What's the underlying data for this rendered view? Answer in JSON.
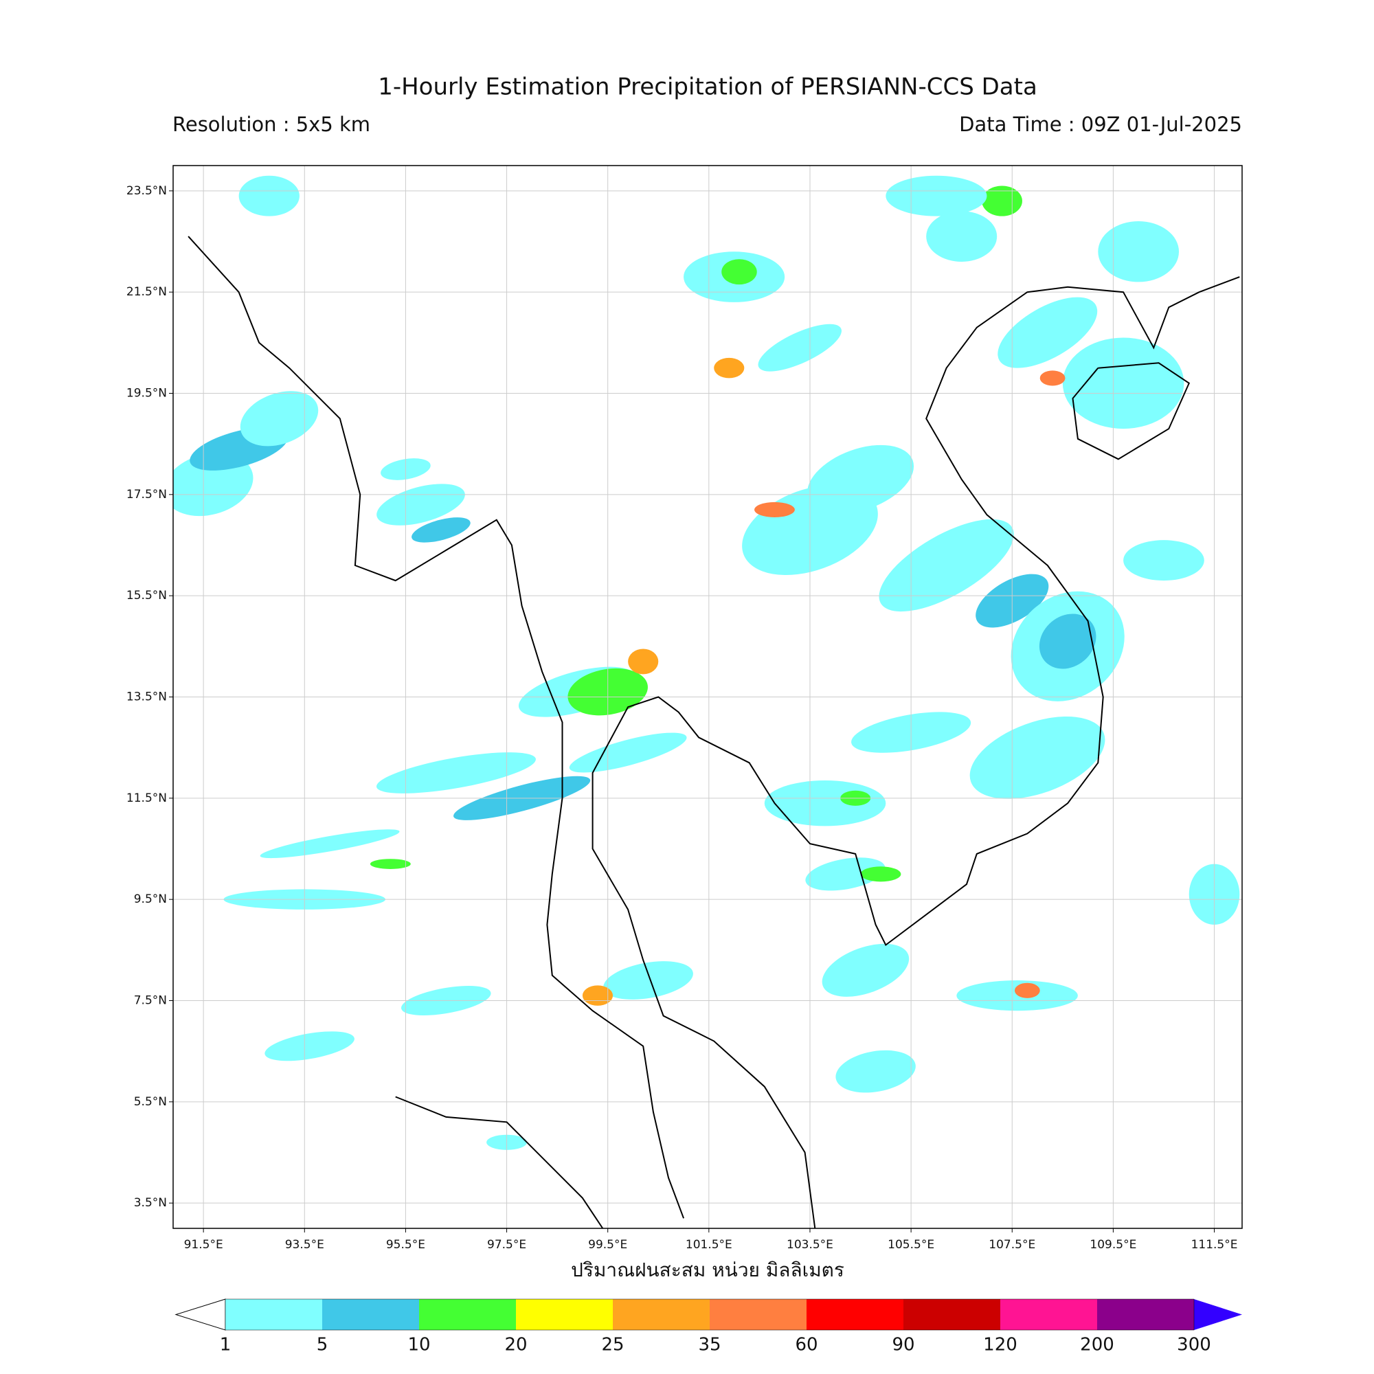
{
  "map": {
    "title": "1-Hourly Estimation Precipitation of PERSIANN-CCS Data",
    "resolution": "Resolution : 5x5 km",
    "data_time": "Data Time : 09Z 01-Jul-2025",
    "x_label": "ปริมาณฝนสะสม หน่วย มิลลิเมตร",
    "xlim": [
      90.9,
      112.05
    ],
    "ylim": [
      3.0,
      24.0
    ],
    "xticks": [
      {
        "value": 91.5,
        "label": "91.5°E"
      },
      {
        "value": 93.5,
        "label": "93.5°E"
      },
      {
        "value": 95.5,
        "label": "95.5°E"
      },
      {
        "value": 97.5,
        "label": "97.5°E"
      },
      {
        "value": 99.5,
        "label": "99.5°E"
      },
      {
        "value": 101.5,
        "label": "101.5°E"
      },
      {
        "value": 103.5,
        "label": "103.5°E"
      },
      {
        "value": 105.5,
        "label": "105.5°E"
      },
      {
        "value": 107.5,
        "label": "107.5°E"
      },
      {
        "value": 109.5,
        "label": "109.5°E"
      },
      {
        "value": 111.5,
        "label": "111.5°E"
      }
    ],
    "yticks": [
      {
        "value": 3.5,
        "label": "3.5°N"
      },
      {
        "value": 5.5,
        "label": "5.5°N"
      },
      {
        "value": 7.5,
        "label": "7.5°N"
      },
      {
        "value": 9.5,
        "label": "9.5°N"
      },
      {
        "value": 11.5,
        "label": "11.5°N"
      },
      {
        "value": 13.5,
        "label": "13.5°N"
      },
      {
        "value": 15.5,
        "label": "15.5°N"
      },
      {
        "value": 17.5,
        "label": "17.5°N"
      },
      {
        "value": 19.5,
        "label": "19.5°N"
      },
      {
        "value": 21.5,
        "label": "21.5°N"
      },
      {
        "value": 23.5,
        "label": "23.5°N"
      }
    ],
    "grid": true,
    "colorbar": {
      "levels": [
        1,
        5,
        10,
        20,
        25,
        35,
        60,
        90,
        120,
        200,
        300
      ],
      "colors": [
        "#80ffff",
        "#40c8e8",
        "#44ff33",
        "#ffff00",
        "#ffa520",
        "#ff7f40",
        "#ff0000",
        "#cc0000",
        "#ff1493",
        "#8b008b"
      ],
      "under_color": "#ffffff",
      "over_color": "#3300ff"
    }
  }
}
